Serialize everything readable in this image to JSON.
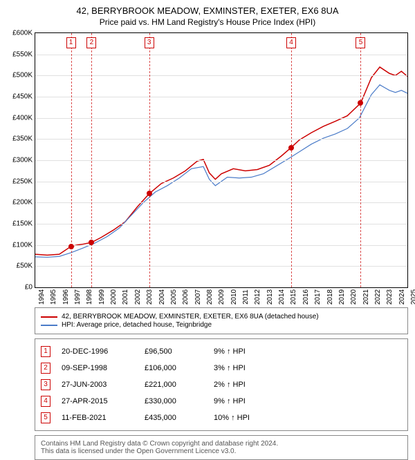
{
  "title_line1": "42, BERRYBROOK MEADOW, EXMINSTER, EXETER, EX6 8UA",
  "title_line2": "Price paid vs. HM Land Registry's House Price Index (HPI)",
  "chart": {
    "type": "line",
    "xlim": [
      1994,
      2025
    ],
    "ylim": [
      0,
      600000
    ],
    "ytick_step": 50000,
    "ytick_prefix": "£",
    "ytick_suffix": "K",
    "x_ticks": [
      1994,
      1995,
      1996,
      1997,
      1998,
      1999,
      2000,
      2001,
      2002,
      2003,
      2004,
      2005,
      2006,
      2007,
      2008,
      2009,
      2010,
      2011,
      2012,
      2013,
      2014,
      2015,
      2016,
      2017,
      2018,
      2019,
      2020,
      2021,
      2022,
      2023,
      2024,
      2025
    ],
    "grid_color": "#e0e0e0",
    "background_color": "#ffffff",
    "series": [
      {
        "name": "property",
        "label": "42, BERRYBROOK MEADOW, EXMINSTER, EXETER, EX6 8UA (detached house)",
        "color": "#cc0000",
        "line_width": 1.5,
        "points": [
          [
            1994.0,
            78000
          ],
          [
            1995.0,
            76000
          ],
          [
            1996.0,
            78000
          ],
          [
            1996.97,
            96500
          ],
          [
            1997.5,
            100000
          ],
          [
            1998.0,
            102000
          ],
          [
            1998.69,
            106000
          ],
          [
            1999.5,
            118000
          ],
          [
            2000.5,
            135000
          ],
          [
            2001.5,
            155000
          ],
          [
            2002.5,
            190000
          ],
          [
            2003.49,
            221000
          ],
          [
            2004.5,
            245000
          ],
          [
            2005.5,
            258000
          ],
          [
            2006.5,
            275000
          ],
          [
            2007.5,
            298000
          ],
          [
            2008.0,
            302000
          ],
          [
            2008.5,
            270000
          ],
          [
            2009.0,
            255000
          ],
          [
            2009.5,
            268000
          ],
          [
            2010.5,
            280000
          ],
          [
            2011.5,
            275000
          ],
          [
            2012.5,
            278000
          ],
          [
            2013.5,
            288000
          ],
          [
            2014.5,
            310000
          ],
          [
            2015.32,
            330000
          ],
          [
            2016.0,
            348000
          ],
          [
            2017.0,
            365000
          ],
          [
            2018.0,
            380000
          ],
          [
            2019.0,
            392000
          ],
          [
            2020.0,
            405000
          ],
          [
            2021.11,
            435000
          ],
          [
            2022.0,
            495000
          ],
          [
            2022.7,
            520000
          ],
          [
            2023.5,
            505000
          ],
          [
            2024.0,
            500000
          ],
          [
            2024.5,
            510000
          ],
          [
            2025.0,
            498000
          ]
        ]
      },
      {
        "name": "hpi",
        "label": "HPI: Average price, detached house, Teignbridge",
        "color": "#4a7bc8",
        "line_width": 1.2,
        "points": [
          [
            1994.0,
            72000
          ],
          [
            1995.0,
            71000
          ],
          [
            1996.0,
            73000
          ],
          [
            1997.0,
            82000
          ],
          [
            1998.0,
            93000
          ],
          [
            1999.0,
            105000
          ],
          [
            2000.0,
            120000
          ],
          [
            2001.0,
            140000
          ],
          [
            2002.0,
            170000
          ],
          [
            2003.0,
            200000
          ],
          [
            2004.0,
            225000
          ],
          [
            2005.0,
            240000
          ],
          [
            2006.0,
            258000
          ],
          [
            2007.0,
            280000
          ],
          [
            2008.0,
            285000
          ],
          [
            2008.5,
            255000
          ],
          [
            2009.0,
            240000
          ],
          [
            2010.0,
            260000
          ],
          [
            2011.0,
            258000
          ],
          [
            2012.0,
            260000
          ],
          [
            2013.0,
            268000
          ],
          [
            2014.0,
            285000
          ],
          [
            2015.0,
            302000
          ],
          [
            2016.0,
            320000
          ],
          [
            2017.0,
            338000
          ],
          [
            2018.0,
            352000
          ],
          [
            2019.0,
            362000
          ],
          [
            2020.0,
            375000
          ],
          [
            2021.0,
            400000
          ],
          [
            2022.0,
            455000
          ],
          [
            2022.7,
            478000
          ],
          [
            2023.5,
            465000
          ],
          [
            2024.0,
            460000
          ],
          [
            2024.5,
            465000
          ],
          [
            2025.0,
            458000
          ]
        ]
      }
    ],
    "vlines": [
      {
        "num": "1",
        "x": 1996.97,
        "color": "#cc0000"
      },
      {
        "num": "2",
        "x": 1998.69,
        "color": "#cc0000"
      },
      {
        "num": "3",
        "x": 2003.49,
        "color": "#cc0000"
      },
      {
        "num": "4",
        "x": 2015.32,
        "color": "#cc0000"
      },
      {
        "num": "5",
        "x": 2021.11,
        "color": "#cc0000"
      }
    ],
    "markers": [
      {
        "x": 1996.97,
        "y": 96500,
        "color": "#cc0000"
      },
      {
        "x": 1998.69,
        "y": 106000,
        "color": "#cc0000"
      },
      {
        "x": 2003.49,
        "y": 221000,
        "color": "#cc0000"
      },
      {
        "x": 2015.32,
        "y": 330000,
        "color": "#cc0000"
      },
      {
        "x": 2021.11,
        "y": 435000,
        "color": "#cc0000"
      }
    ]
  },
  "legend": {
    "items": [
      {
        "color": "#cc0000",
        "label": "42, BERRYBROOK MEADOW, EXMINSTER, EXETER, EX6 8UA (detached house)"
      },
      {
        "color": "#4a7bc8",
        "label": "HPI: Average price, detached house, Teignbridge"
      }
    ]
  },
  "events_header_arrow": "↑ HPI",
  "events": [
    {
      "num": "1",
      "date": "20-DEC-1996",
      "price": "£96,500",
      "pct": "9% ↑ HPI"
    },
    {
      "num": "2",
      "date": "09-SEP-1998",
      "price": "£106,000",
      "pct": "3% ↑ HPI"
    },
    {
      "num": "3",
      "date": "27-JUN-2003",
      "price": "£221,000",
      "pct": "2% ↑ HPI"
    },
    {
      "num": "4",
      "date": "27-APR-2015",
      "price": "£330,000",
      "pct": "9% ↑ HPI"
    },
    {
      "num": "5",
      "date": "11-FEB-2021",
      "price": "£435,000",
      "pct": "10% ↑ HPI"
    }
  ],
  "footer_line1": "Contains HM Land Registry data © Crown copyright and database right 2024.",
  "footer_line2": "This data is licensed under the Open Government Licence v3.0."
}
